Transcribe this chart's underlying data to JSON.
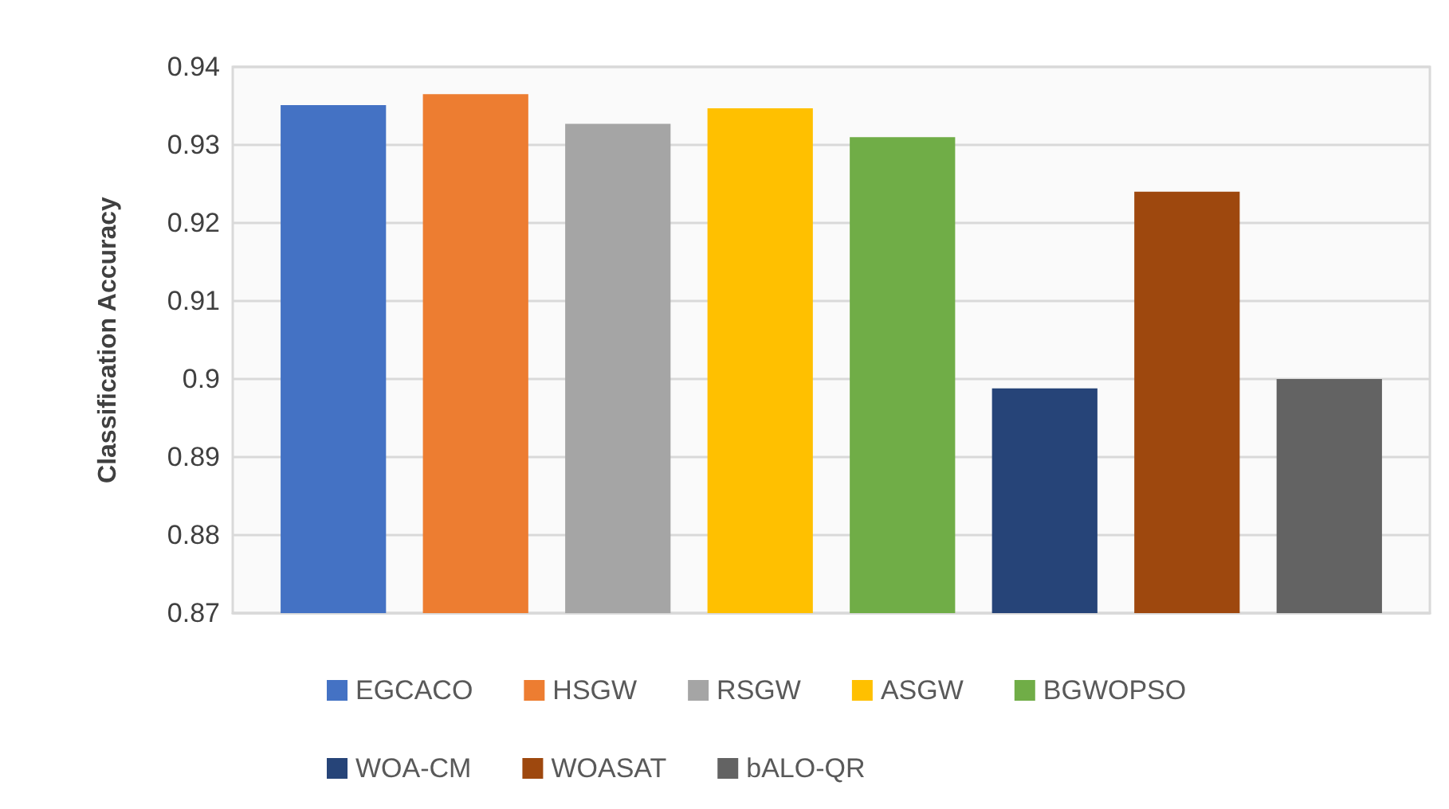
{
  "chart_data": {
    "type": "bar",
    "ylabel": "Classification Accuracy",
    "categories": [
      null
    ],
    "series": [
      {
        "name": "EGCACO",
        "color": "#4472c4",
        "values": [
          0.9351
        ]
      },
      {
        "name": "HSGW",
        "color": "#ed7d31",
        "values": [
          0.9365
        ]
      },
      {
        "name": "RSGW",
        "color": "#a5a5a5",
        "values": [
          0.9327
        ]
      },
      {
        "name": "ASGW",
        "color": "#ffc000",
        "values": [
          0.9347
        ]
      },
      {
        "name": "BGWOPSO",
        "color": "#70ad47",
        "values": [
          0.931
        ]
      },
      {
        "name": "WOA-CM",
        "color": "#264478",
        "values": [
          0.8988
        ]
      },
      {
        "name": "WOASAT",
        "color": "#9e480e",
        "values": [
          0.924
        ]
      },
      {
        "name": "bALO-QR",
        "color": "#636363",
        "values": [
          0.9
        ]
      }
    ],
    "ylim": [
      0.87,
      0.94
    ],
    "yticks": [
      0.87,
      0.88,
      0.89,
      0.9,
      0.91,
      0.92,
      0.93,
      0.94
    ],
    "grid": "y",
    "legend": "bottom"
  }
}
